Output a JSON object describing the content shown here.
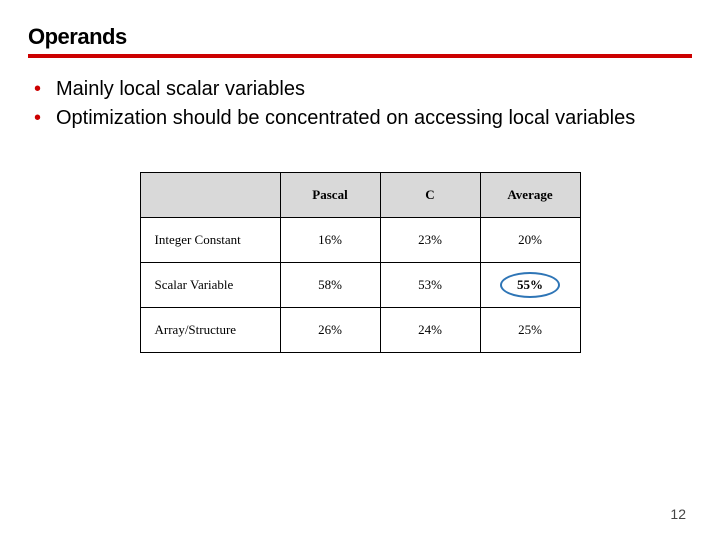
{
  "title": "Operands",
  "bullets": [
    "Mainly local scalar variables",
    "Optimization should be concentrated on accessing local variables"
  ],
  "table": {
    "columns": [
      "",
      "Pascal",
      "C",
      "Average"
    ],
    "rows": [
      {
        "label": "Integer Constant",
        "pascal": "16%",
        "c": "23%",
        "avg": "20%",
        "avg_bold": false,
        "avg_circled": false
      },
      {
        "label": "Scalar Variable",
        "pascal": "58%",
        "c": "53%",
        "avg": "55%",
        "avg_bold": true,
        "avg_circled": true
      },
      {
        "label": "Array/Structure",
        "pascal": "26%",
        "c": "24%",
        "avg": "25%",
        "avg_bold": false,
        "avg_circled": false
      }
    ],
    "header_bg": "#d9d9d9",
    "border_color": "#000000",
    "circle_color": "#2e75b6"
  },
  "accent_color": "#cc0000",
  "background_color": "#ffffff",
  "page_number": "12"
}
